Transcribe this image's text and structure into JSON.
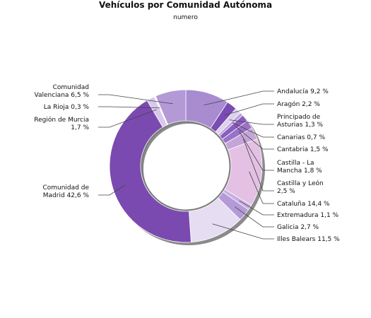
{
  "chart_data": {
    "type": "pie",
    "title": "Vehículos por Comunidad Autónoma",
    "subtitle": "numero",
    "slices": [
      {
        "name": "Andalucía",
        "value_label": "9,2 %",
        "value": 9.2,
        "color": "#a98bd0",
        "lines": [
          "Andalucía 9,2 %"
        ]
      },
      {
        "name": "Aragón",
        "value_label": "2,2 %",
        "value": 2.2,
        "color": "#7a4cb2",
        "lines": [
          "Aragón 2,2 %"
        ]
      },
      {
        "name": "Principado de Asturias",
        "value_label": "1,3 %",
        "value": 1.3,
        "color": "#ded0ee",
        "lines": [
          "Principado de",
          "Asturias 1,3 %"
        ]
      },
      {
        "name": "Canarias",
        "value_label": "0,7 %",
        "value": 0.7,
        "color": "#b9a0da",
        "lines": [
          "Canarias 0,7 %"
        ]
      },
      {
        "name": "Cantabria",
        "value_label": "1,5 %",
        "value": 1.5,
        "color": "#8c5cc0",
        "lines": [
          "Cantabria 1,5 %"
        ]
      },
      {
        "name": "Castilla - La Mancha",
        "value_label": "1,8 %",
        "value": 1.8,
        "color": "#9a72c8",
        "lines": [
          "Castilla - La",
          "Mancha 1,8 %"
        ]
      },
      {
        "name": "Castilla y León",
        "value_label": "2,5 %",
        "value": 2.5,
        "color": "#c5a4d8",
        "lines": [
          "Castilla y León",
          "2,5 %"
        ]
      },
      {
        "name": "Cataluña",
        "value_label": "14,4 %",
        "value": 14.4,
        "color": "#e3c0e4",
        "lines": [
          "Cataluña 14,4 %"
        ]
      },
      {
        "name": "Extremadura",
        "value_label": "1,1 %",
        "value": 1.1,
        "color": "#c8afe0",
        "lines": [
          "Extremadura 1,1 %"
        ]
      },
      {
        "name": "Galicia",
        "value_label": "2,7 %",
        "value": 2.7,
        "color": "#b59ad8",
        "lines": [
          "Galicia 2,7 %"
        ]
      },
      {
        "name": "Illes Balears",
        "value_label": "11,5 %",
        "value": 11.5,
        "color": "#e6ddf2",
        "lines": [
          "Illes Balears 11,5 %"
        ]
      },
      {
        "name": "Comunidad de Madrid",
        "value_label": "42,6 %",
        "value": 42.6,
        "color": "#7b4ab0",
        "lines": [
          "Comunidad de",
          "Madrid 42,6 %"
        ]
      },
      {
        "name": "Región de Murcia",
        "value_label": "1,7 %",
        "value": 1.7,
        "color": "#d7c8ec",
        "lines": [
          "Región de Murcia",
          "1,7 %"
        ]
      },
      {
        "name": "La Rioja",
        "value_label": "0,3 %",
        "value": 0.3,
        "color": "#ffffff",
        "lines": [
          "La Rioja 0,3 %"
        ]
      },
      {
        "name": "Comunidad Valenciana",
        "value_label": "6,5 %",
        "value": 6.5,
        "color": "#b39ad6",
        "lines": [
          "Comunidad",
          "Valenciana 6,5 %"
        ]
      }
    ]
  }
}
